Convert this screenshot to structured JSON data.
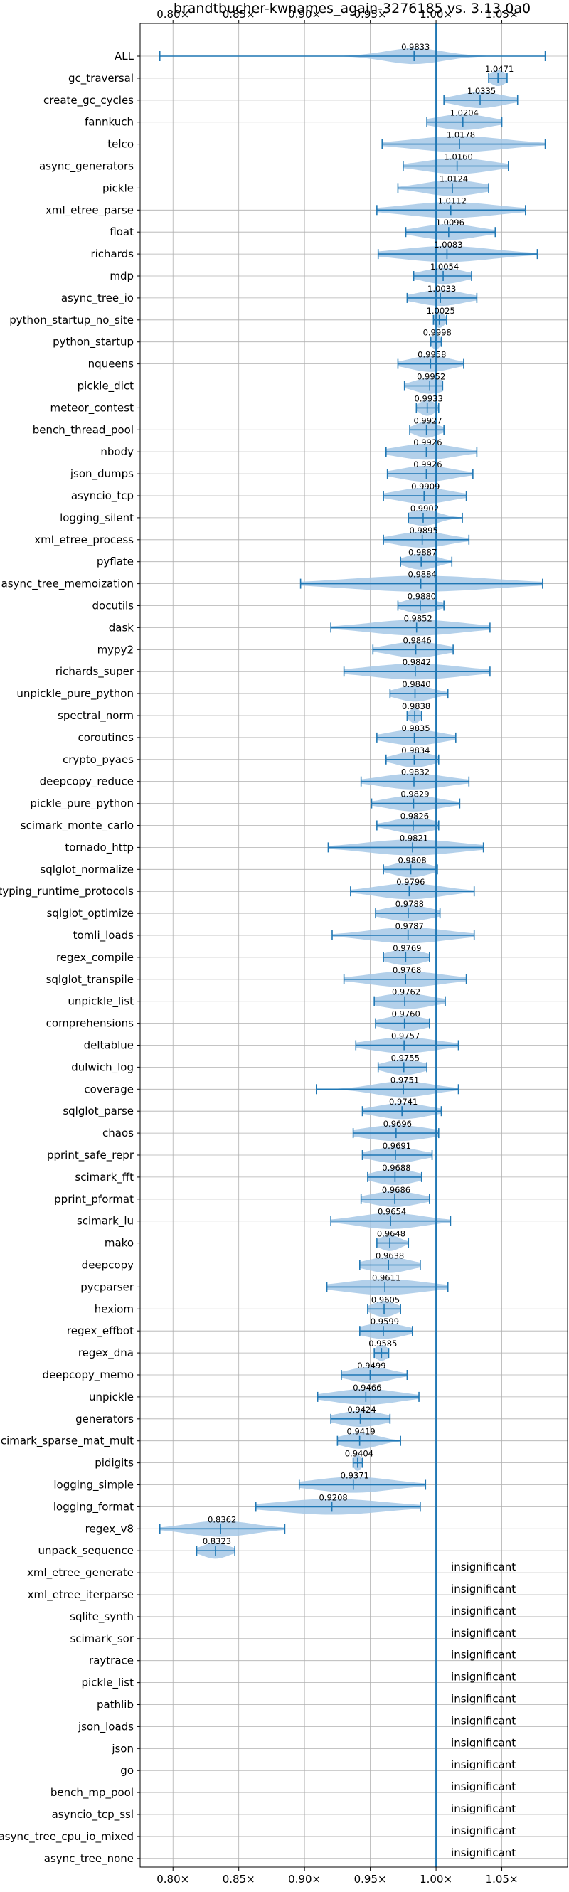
{
  "chart_data": {
    "type": "violin",
    "title": "brandtbucher-kwnames_again-3276185 vs. 3.13.0a0",
    "xlabel": "",
    "ylabel": "",
    "xlim": [
      0.775,
      1.1
    ],
    "xticks": [
      0.8,
      0.85,
      0.9,
      0.95,
      1.0,
      1.05
    ],
    "xtick_labels": [
      "0.80×",
      "0.85×",
      "0.90×",
      "0.95×",
      "1.00×",
      "1.05×"
    ],
    "grid": true,
    "reference_line": 1.0,
    "colors": {
      "line": "#1f77b4",
      "violin": "#a6c8e6",
      "grid": "#b0b0b0"
    },
    "categories": [
      {
        "name": "ALL",
        "value": 0.9833,
        "label": "0.9833",
        "min": 0.79,
        "max": 1.083,
        "spread": 0.022
      },
      {
        "name": "gc_traversal",
        "value": 1.0471,
        "label": "1.0471",
        "min": 1.04,
        "max": 1.054,
        "spread": 0.006
      },
      {
        "name": "create_gc_cycles",
        "value": 1.0335,
        "label": "1.0335",
        "min": 1.006,
        "max": 1.062,
        "spread": 0.018
      },
      {
        "name": "fannkuch",
        "value": 1.0204,
        "label": "1.0204",
        "min": 0.993,
        "max": 1.05,
        "spread": 0.02
      },
      {
        "name": "telco",
        "value": 1.0178,
        "label": "1.0178",
        "min": 0.959,
        "max": 1.083,
        "spread": 0.035
      },
      {
        "name": "async_generators",
        "value": 1.016,
        "label": "1.0160",
        "min": 0.975,
        "max": 1.055,
        "spread": 0.025
      },
      {
        "name": "pickle",
        "value": 1.0124,
        "label": "1.0124",
        "min": 0.971,
        "max": 1.04,
        "spread": 0.022
      },
      {
        "name": "xml_etree_parse",
        "value": 1.0112,
        "label": "1.0112",
        "min": 0.955,
        "max": 1.068,
        "spread": 0.035
      },
      {
        "name": "float",
        "value": 1.0096,
        "label": "1.0096",
        "min": 0.977,
        "max": 1.045,
        "spread": 0.022
      },
      {
        "name": "richards",
        "value": 1.0083,
        "label": "1.0083",
        "min": 0.956,
        "max": 1.077,
        "spread": 0.035
      },
      {
        "name": "mdp",
        "value": 1.0054,
        "label": "1.0054",
        "min": 0.983,
        "max": 1.027,
        "spread": 0.016
      },
      {
        "name": "async_tree_io",
        "value": 1.0033,
        "label": "1.0033",
        "min": 0.978,
        "max": 1.031,
        "spread": 0.018
      },
      {
        "name": "python_startup_no_site",
        "value": 1.0025,
        "label": "1.0025",
        "min": 0.998,
        "max": 1.008,
        "spread": 0.004
      },
      {
        "name": "python_startup",
        "value": 0.9998,
        "label": "0.9998",
        "min": 0.996,
        "max": 1.004,
        "spread": 0.003
      },
      {
        "name": "nqueens",
        "value": 0.9958,
        "label": "0.9958",
        "min": 0.971,
        "max": 1.021,
        "spread": 0.016
      },
      {
        "name": "pickle_dict",
        "value": 0.9952,
        "label": "0.9952",
        "min": 0.976,
        "max": 1.005,
        "spread": 0.012
      },
      {
        "name": "meteor_contest",
        "value": 0.9933,
        "label": "0.9933",
        "min": 0.985,
        "max": 1.002,
        "spread": 0.006
      },
      {
        "name": "bench_thread_pool",
        "value": 0.9927,
        "label": "0.9927",
        "min": 0.98,
        "max": 1.006,
        "spread": 0.009
      },
      {
        "name": "nbody",
        "value": 0.9926,
        "label": "0.9926",
        "min": 0.962,
        "max": 1.031,
        "spread": 0.022
      },
      {
        "name": "json_dumps",
        "value": 0.9926,
        "label": "0.9926",
        "min": 0.963,
        "max": 1.028,
        "spread": 0.02
      },
      {
        "name": "asyncio_tcp",
        "value": 0.9909,
        "label": "0.9909",
        "min": 0.96,
        "max": 1.023,
        "spread": 0.02
      },
      {
        "name": "logging_silent",
        "value": 0.9902,
        "label": "0.9902",
        "min": 0.979,
        "max": 1.02,
        "spread": 0.012
      },
      {
        "name": "xml_etree_process",
        "value": 0.9895,
        "label": "0.9895",
        "min": 0.96,
        "max": 1.025,
        "spread": 0.02
      },
      {
        "name": "pyflate",
        "value": 0.9887,
        "label": "0.9887",
        "min": 0.973,
        "max": 1.012,
        "spread": 0.012
      },
      {
        "name": "async_tree_memoization",
        "value": 0.9884,
        "label": "0.9884",
        "min": 0.897,
        "max": 1.081,
        "spread": 0.055
      },
      {
        "name": "docutils",
        "value": 0.988,
        "label": "0.9880",
        "min": 0.971,
        "max": 1.006,
        "spread": 0.012
      },
      {
        "name": "dask",
        "value": 0.9852,
        "label": "0.9852",
        "min": 0.92,
        "max": 1.041,
        "spread": 0.035
      },
      {
        "name": "mypy2",
        "value": 0.9846,
        "label": "0.9846",
        "min": 0.952,
        "max": 1.013,
        "spread": 0.02
      },
      {
        "name": "richards_super",
        "value": 0.9842,
        "label": "0.9842",
        "min": 0.93,
        "max": 1.041,
        "spread": 0.035
      },
      {
        "name": "unpickle_pure_python",
        "value": 0.984,
        "label": "0.9840",
        "min": 0.965,
        "max": 1.009,
        "spread": 0.014
      },
      {
        "name": "spectral_norm",
        "value": 0.9838,
        "label": "0.9838",
        "min": 0.978,
        "max": 0.989,
        "spread": 0.004
      },
      {
        "name": "coroutines",
        "value": 0.9835,
        "label": "0.9835",
        "min": 0.955,
        "max": 1.015,
        "spread": 0.02
      },
      {
        "name": "crypto_pyaes",
        "value": 0.9834,
        "label": "0.9834",
        "min": 0.962,
        "max": 1.002,
        "spread": 0.014
      },
      {
        "name": "deepcopy_reduce",
        "value": 0.9832,
        "label": "0.9832",
        "min": 0.943,
        "max": 1.025,
        "spread": 0.025
      },
      {
        "name": "pickle_pure_python",
        "value": 0.9829,
        "label": "0.9829",
        "min": 0.951,
        "max": 1.018,
        "spread": 0.02
      },
      {
        "name": "scimark_monte_carlo",
        "value": 0.9826,
        "label": "0.9826",
        "min": 0.955,
        "max": 1.002,
        "spread": 0.016
      },
      {
        "name": "tornado_http",
        "value": 0.9821,
        "label": "0.9821",
        "min": 0.918,
        "max": 1.036,
        "spread": 0.035
      },
      {
        "name": "sqlglot_normalize",
        "value": 0.9808,
        "label": "0.9808",
        "min": 0.96,
        "max": 1.001,
        "spread": 0.014
      },
      {
        "name": "typing_runtime_protocols",
        "value": 0.9796,
        "label": "0.9796",
        "min": 0.935,
        "max": 1.029,
        "spread": 0.025
      },
      {
        "name": "sqlglot_optimize",
        "value": 0.9788,
        "label": "0.9788",
        "min": 0.954,
        "max": 1.003,
        "spread": 0.018
      },
      {
        "name": "tomli_loads",
        "value": 0.9787,
        "label": "0.9787",
        "min": 0.921,
        "max": 1.029,
        "spread": 0.03
      },
      {
        "name": "regex_compile",
        "value": 0.9769,
        "label": "0.9769",
        "min": 0.96,
        "max": 0.995,
        "spread": 0.014
      },
      {
        "name": "sqlglot_transpile",
        "value": 0.9768,
        "label": "0.9768",
        "min": 0.93,
        "max": 1.023,
        "spread": 0.028
      },
      {
        "name": "unpickle_list",
        "value": 0.9762,
        "label": "0.9762",
        "min": 0.953,
        "max": 1.007,
        "spread": 0.02
      },
      {
        "name": "comprehensions",
        "value": 0.976,
        "label": "0.9760",
        "min": 0.954,
        "max": 0.995,
        "spread": 0.016
      },
      {
        "name": "deltablue",
        "value": 0.9757,
        "label": "0.9757",
        "min": 0.939,
        "max": 1.017,
        "spread": 0.025
      },
      {
        "name": "dulwich_log",
        "value": 0.9755,
        "label": "0.9755",
        "min": 0.956,
        "max": 0.993,
        "spread": 0.014
      },
      {
        "name": "coverage",
        "value": 0.9751,
        "label": "0.9751",
        "min": 0.909,
        "max": 1.017,
        "spread": 0.022
      },
      {
        "name": "sqlglot_parse",
        "value": 0.9741,
        "label": "0.9741",
        "min": 0.944,
        "max": 1.004,
        "spread": 0.02
      },
      {
        "name": "chaos",
        "value": 0.9696,
        "label": "0.9696",
        "min": 0.937,
        "max": 1.002,
        "spread": 0.025
      },
      {
        "name": "pprint_safe_repr",
        "value": 0.9691,
        "label": "0.9691",
        "min": 0.944,
        "max": 0.997,
        "spread": 0.018
      },
      {
        "name": "scimark_fft",
        "value": 0.9688,
        "label": "0.9688",
        "min": 0.948,
        "max": 0.989,
        "spread": 0.016
      },
      {
        "name": "pprint_pformat",
        "value": 0.9686,
        "label": "0.9686",
        "min": 0.943,
        "max": 0.995,
        "spread": 0.018
      },
      {
        "name": "scimark_lu",
        "value": 0.9654,
        "label": "0.9654",
        "min": 0.92,
        "max": 1.011,
        "spread": 0.025
      },
      {
        "name": "mako",
        "value": 0.9648,
        "label": "0.9648",
        "min": 0.955,
        "max": 0.979,
        "spread": 0.008
      },
      {
        "name": "deepcopy",
        "value": 0.9638,
        "label": "0.9638",
        "min": 0.942,
        "max": 0.988,
        "spread": 0.016
      },
      {
        "name": "pycparser",
        "value": 0.9611,
        "label": "0.9611",
        "min": 0.917,
        "max": 1.009,
        "spread": 0.03
      },
      {
        "name": "hexiom",
        "value": 0.9605,
        "label": "0.9605",
        "min": 0.948,
        "max": 0.973,
        "spread": 0.009
      },
      {
        "name": "regex_effbot",
        "value": 0.9599,
        "label": "0.9599",
        "min": 0.942,
        "max": 0.982,
        "spread": 0.016
      },
      {
        "name": "regex_dna",
        "value": 0.9585,
        "label": "0.9585",
        "min": 0.953,
        "max": 0.964,
        "spread": 0.005
      },
      {
        "name": "deepcopy_memo",
        "value": 0.9499,
        "label": "0.9499",
        "min": 0.928,
        "max": 0.978,
        "spread": 0.016
      },
      {
        "name": "unpickle",
        "value": 0.9466,
        "label": "0.9466",
        "min": 0.91,
        "max": 0.987,
        "spread": 0.025
      },
      {
        "name": "generators",
        "value": 0.9424,
        "label": "0.9424",
        "min": 0.92,
        "max": 0.965,
        "spread": 0.018
      },
      {
        "name": "scimark_sparse_mat_mult",
        "value": 0.9419,
        "label": "0.9419",
        "min": 0.925,
        "max": 0.973,
        "spread": 0.014
      },
      {
        "name": "pidigits",
        "value": 0.9404,
        "label": "0.9404",
        "min": 0.937,
        "max": 0.944,
        "spread": 0.003
      },
      {
        "name": "logging_simple",
        "value": 0.9371,
        "label": "0.9371",
        "min": 0.896,
        "max": 0.992,
        "spread": 0.03
      },
      {
        "name": "logging_format",
        "value": 0.9208,
        "label": "0.9208",
        "min": 0.863,
        "max": 0.988,
        "spread": 0.04
      },
      {
        "name": "regex_v8",
        "value": 0.8362,
        "label": "0.8362",
        "min": 0.79,
        "max": 0.885,
        "spread": 0.025
      },
      {
        "name": "unpack_sequence",
        "value": 0.8323,
        "label": "0.8323",
        "min": 0.818,
        "max": 0.847,
        "spread": 0.01
      },
      {
        "name": "xml_etree_generate",
        "insignificant": true,
        "label": "insignificant"
      },
      {
        "name": "xml_etree_iterparse",
        "insignificant": true,
        "label": "insignificant"
      },
      {
        "name": "sqlite_synth",
        "insignificant": true,
        "label": "insignificant"
      },
      {
        "name": "scimark_sor",
        "insignificant": true,
        "label": "insignificant"
      },
      {
        "name": "raytrace",
        "insignificant": true,
        "label": "insignificant"
      },
      {
        "name": "pickle_list",
        "insignificant": true,
        "label": "insignificant"
      },
      {
        "name": "pathlib",
        "insignificant": true,
        "label": "insignificant"
      },
      {
        "name": "json_loads",
        "insignificant": true,
        "label": "insignificant"
      },
      {
        "name": "json",
        "insignificant": true,
        "label": "insignificant"
      },
      {
        "name": "go",
        "insignificant": true,
        "label": "insignificant"
      },
      {
        "name": "bench_mp_pool",
        "insignificant": true,
        "label": "insignificant"
      },
      {
        "name": "asyncio_tcp_ssl",
        "insignificant": true,
        "label": "insignificant"
      },
      {
        "name": "async_tree_cpu_io_mixed",
        "insignificant": true,
        "label": "insignificant"
      },
      {
        "name": "async_tree_none",
        "insignificant": true,
        "label": "insignificant"
      }
    ]
  }
}
